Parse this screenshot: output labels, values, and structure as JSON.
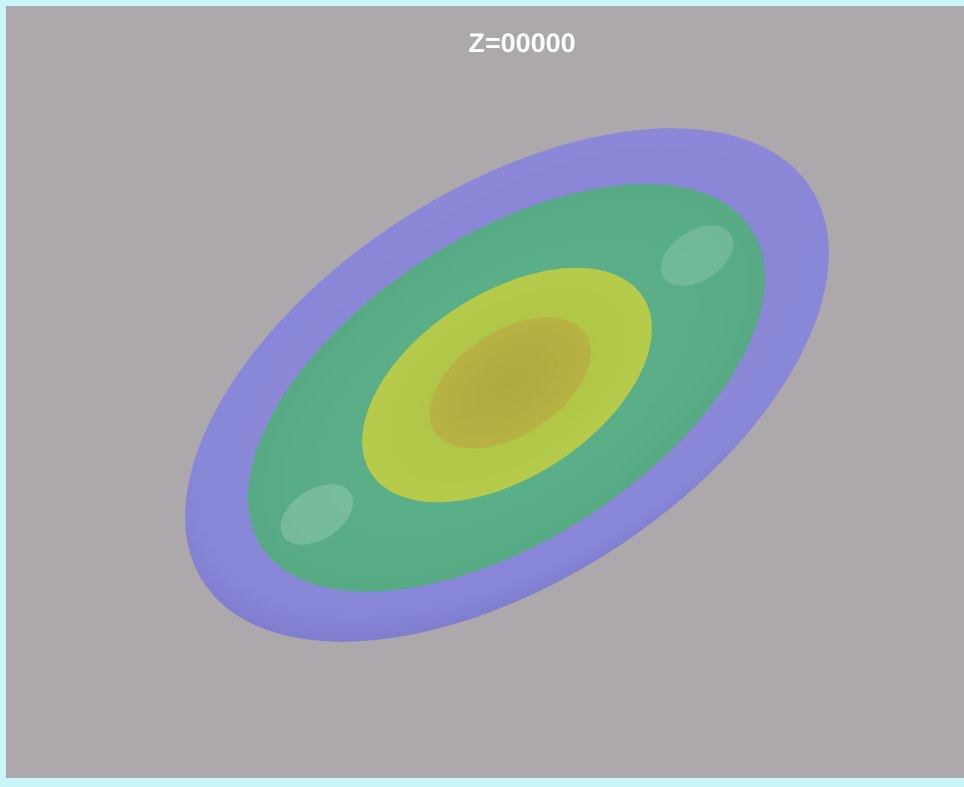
{
  "label": "Z=00000"
}
